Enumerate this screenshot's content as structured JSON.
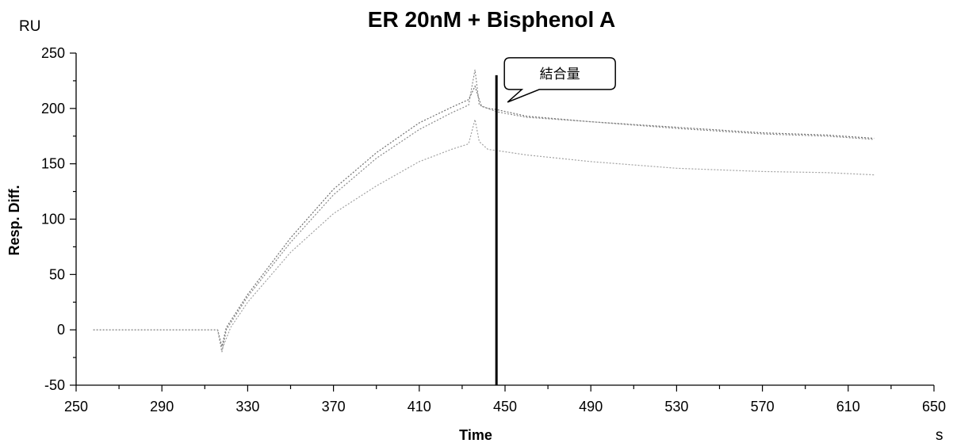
{
  "chart_data": {
    "type": "line",
    "title": "ER 20nM + Bisphenol A",
    "y_unit": "RU",
    "x_unit": "s",
    "xlabel": "Time",
    "ylabel": "Resp. Diff.",
    "xlim": [
      250,
      650
    ],
    "ylim": [
      -50,
      250
    ],
    "x_ticks": [
      250,
      290,
      330,
      370,
      410,
      450,
      490,
      530,
      570,
      610,
      650
    ],
    "y_ticks": [
      -50,
      0,
      50,
      100,
      150,
      200,
      250
    ],
    "grid": false,
    "annotation": {
      "text": "結合量",
      "x": 446,
      "y_top": 230,
      "y_bottom": -50,
      "color": "#000000"
    },
    "series": [
      {
        "color": "#707070",
        "x": [
          258,
          290,
          305,
          316,
          318,
          320,
          330,
          350,
          370,
          390,
          410,
          425,
          433,
          436,
          439,
          442,
          446,
          460,
          490,
          530,
          570,
          600,
          622
        ],
        "y": [
          0,
          0,
          0,
          0,
          -15,
          2,
          32,
          83,
          127,
          160,
          187,
          201,
          208,
          220,
          202,
          200,
          199,
          193,
          188,
          183,
          178,
          176,
          173
        ]
      },
      {
        "color": "#8a8a8a",
        "x": [
          316,
          318,
          320,
          330,
          350,
          370,
          390,
          410,
          425,
          433,
          436,
          438,
          442,
          446,
          460,
          490,
          530,
          570,
          600,
          622
        ],
        "y": [
          0,
          -20,
          0,
          30,
          79,
          122,
          155,
          181,
          196,
          203,
          235,
          203,
          200,
          197,
          192,
          188,
          182,
          177,
          175,
          172
        ]
      },
      {
        "color": "#a2a2a2",
        "x": [
          316,
          318,
          322,
          330,
          350,
          370,
          390,
          410,
          425,
          433,
          436,
          438,
          442,
          446,
          460,
          490,
          530,
          570,
          600,
          622
        ],
        "y": [
          0,
          -18,
          2,
          25,
          70,
          105,
          130,
          152,
          163,
          168,
          190,
          170,
          163,
          162,
          158,
          152,
          146,
          143,
          142,
          140
        ]
      }
    ]
  }
}
